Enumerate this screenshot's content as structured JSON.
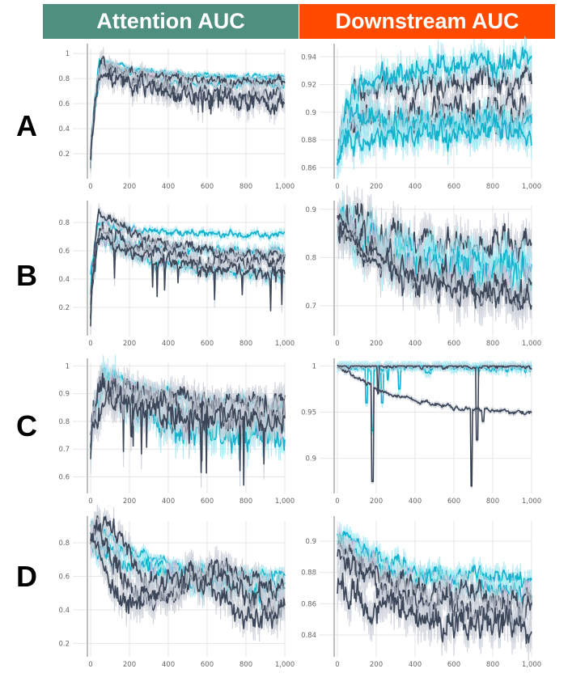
{
  "headers": {
    "attention": {
      "label": "Attention AUC",
      "color": "#4e8f80"
    },
    "downstream": {
      "label": "Downstream AUC",
      "color": "#ff4a00"
    }
  },
  "colors": {
    "dark": "#3b4658",
    "cyan": "#14b1cc",
    "band_dark": "#c6cad4",
    "band_cyan": "#9fe6f2",
    "grid": "#e6e6e6",
    "axis": "#bfbfbf"
  },
  "chart_data": [
    {
      "id": "A-attention",
      "row": "A",
      "metric": "Attention AUC",
      "type": "line",
      "x_ticks": [
        0,
        200,
        400,
        600,
        800,
        1000
      ],
      "x_tick_labels": [
        "0",
        "200",
        "400",
        "600",
        "800",
        "1,000"
      ],
      "y_ticks": [
        0.2,
        0.4,
        0.6,
        0.8,
        1
      ],
      "y_tick_labels": [
        "0.2",
        "0.4",
        "0.6",
        "0.8",
        "1"
      ],
      "ylim": [
        0,
        1.04
      ],
      "xlim": [
        0,
        1000
      ],
      "series": [
        {
          "color": "cyan",
          "start": 0.08,
          "peak_x": 45,
          "peak": 0.94,
          "end": 0.81,
          "noise": 0.015,
          "seed": 1
        },
        {
          "color": "cyan",
          "start": 0.1,
          "peak_x": 55,
          "peak": 0.92,
          "end": 0.8,
          "noise": 0.015,
          "seed": 2
        },
        {
          "color": "cyan",
          "start": 0.12,
          "peak_x": 60,
          "peak": 0.9,
          "end": 0.74,
          "noise": 0.02,
          "seed": 3
        },
        {
          "color": "dark",
          "start": 0.1,
          "peak_x": 50,
          "peak": 0.93,
          "end": 0.76,
          "noise": 0.03,
          "seed": 4
        },
        {
          "color": "dark",
          "start": 0.12,
          "peak_x": 55,
          "peak": 0.9,
          "end": 0.66,
          "noise": 0.05,
          "dip": 0.12,
          "seed": 5
        },
        {
          "color": "dark",
          "start": 0.14,
          "peak_x": 60,
          "peak": 0.88,
          "end": 0.62,
          "noise": 0.06,
          "dip": 0.15,
          "seed": 6
        }
      ]
    },
    {
      "id": "A-downstream",
      "row": "A",
      "metric": "Downstream AUC",
      "type": "line",
      "x_ticks": [
        0,
        200,
        400,
        600,
        800,
        1000
      ],
      "x_tick_labels": [
        "0",
        "200",
        "400",
        "600",
        "800",
        "1,000"
      ],
      "y_ticks": [
        0.86,
        0.88,
        0.9,
        0.92,
        0.94
      ],
      "y_tick_labels": [
        "0.86",
        "0.88",
        "0.9",
        "0.92",
        "0.94"
      ],
      "ylim": [
        0.852,
        0.946
      ],
      "xlim": [
        0,
        1000
      ],
      "series": [
        {
          "color": "dark",
          "start": 0.86,
          "peak_x": 80,
          "peak": 0.915,
          "end": 0.923,
          "noise": 0.007,
          "seed": 11
        },
        {
          "color": "cyan",
          "start": 0.862,
          "peak_x": 100,
          "peak": 0.92,
          "end": 0.936,
          "noise": 0.007,
          "seed": 12
        },
        {
          "color": "dark",
          "start": 0.865,
          "peak_x": 80,
          "peak": 0.895,
          "end": 0.902,
          "noise": 0.007,
          "seed": 13
        },
        {
          "color": "dark",
          "start": 0.865,
          "peak_x": 80,
          "peak": 0.892,
          "end": 0.893,
          "noise": 0.007,
          "seed": 14
        },
        {
          "color": "cyan",
          "start": 0.868,
          "peak_x": 80,
          "peak": 0.895,
          "end": 0.892,
          "noise": 0.007,
          "seed": 15
        },
        {
          "color": "cyan",
          "start": 0.868,
          "peak_x": 80,
          "peak": 0.88,
          "end": 0.884,
          "noise": 0.007,
          "seed": 16
        }
      ]
    },
    {
      "id": "B-attention",
      "row": "B",
      "metric": "Attention AUC",
      "type": "line",
      "x_ticks": [
        0,
        200,
        400,
        600,
        800,
        1000
      ],
      "x_tick_labels": [
        "0",
        "200",
        "400",
        "600",
        "800",
        "1,000"
      ],
      "y_ticks": [
        0.2,
        0.4,
        0.6,
        0.8
      ],
      "y_tick_labels": [
        "0.2",
        "0.4",
        "0.6",
        "0.8"
      ],
      "ylim": [
        0,
        0.92
      ],
      "xlim": [
        0,
        1000
      ],
      "series": [
        {
          "color": "cyan",
          "start": 0.3,
          "peak_x": 40,
          "peak": 0.8,
          "end": 0.71,
          "noise": 0.02,
          "seed": 21
        },
        {
          "color": "cyan",
          "start": 0.25,
          "peak_x": 45,
          "peak": 0.72,
          "end": 0.58,
          "noise": 0.03,
          "seed": 22
        },
        {
          "color": "cyan",
          "start": 0.4,
          "peak_x": 50,
          "peak": 0.68,
          "end": 0.44,
          "noise": 0.03,
          "seed": 23
        },
        {
          "color": "dark",
          "start": 0.1,
          "peak_x": 40,
          "peak": 0.88,
          "end": 0.56,
          "noise": 0.03,
          "seed": 24
        },
        {
          "color": "dark",
          "start": 0.12,
          "peak_x": 50,
          "peak": 0.78,
          "end": 0.5,
          "noise": 0.04,
          "seed": 25
        },
        {
          "color": "dark",
          "start": 0.08,
          "peak_x": 30,
          "peak": 0.7,
          "end": 0.45,
          "noise": 0.04,
          "dip": 0.25,
          "seed": 26
        }
      ]
    },
    {
      "id": "B-downstream",
      "row": "B",
      "metric": "Downstream AUC",
      "type": "line",
      "x_ticks": [
        0,
        200,
        400,
        600,
        800,
        1000
      ],
      "x_tick_labels": [
        "0",
        "200",
        "400",
        "600",
        "800",
        "1,000"
      ],
      "y_ticks": [
        0.7,
        0.8,
        0.9
      ],
      "y_tick_labels": [
        "0.7",
        "0.8",
        "0.9"
      ],
      "ylim": [
        0.638,
        0.908
      ],
      "xlim": [
        0,
        1000
      ],
      "series": [
        {
          "color": "dark",
          "start": 0.89,
          "peak_x": 20,
          "peak": 0.89,
          "end": 0.82,
          "noise": 0.025,
          "seed": 31
        },
        {
          "color": "cyan",
          "start": 0.88,
          "peak_x": 20,
          "peak": 0.88,
          "end": 0.78,
          "noise": 0.025,
          "seed": 32
        },
        {
          "color": "cyan",
          "start": 0.87,
          "peak_x": 20,
          "peak": 0.87,
          "end": 0.76,
          "noise": 0.03,
          "seed": 33
        },
        {
          "color": "dark",
          "start": 0.88,
          "peak_x": 20,
          "peak": 0.88,
          "end": 0.73,
          "noise": 0.03,
          "seed": 34
        },
        {
          "color": "dark",
          "start": 0.87,
          "peak_x": 20,
          "peak": 0.87,
          "end": 0.72,
          "noise": 0.02,
          "seed": 35
        },
        {
          "color": "dark",
          "start": 0.88,
          "peak_x": 20,
          "peak": 0.88,
          "end": 0.66,
          "noise": 0.01,
          "stop_x": 230,
          "seed": 36
        }
      ]
    },
    {
      "id": "C-attention",
      "row": "C",
      "metric": "Attention AUC",
      "type": "line",
      "x_ticks": [
        0,
        200,
        400,
        600,
        800,
        1000
      ],
      "x_tick_labels": [
        "0",
        "200",
        "400",
        "600",
        "800",
        "1,000"
      ],
      "y_ticks": [
        0.6,
        0.7,
        0.8,
        0.9,
        1
      ],
      "y_tick_labels": [
        "0.6",
        "0.7",
        "0.8",
        "0.9",
        "1"
      ],
      "ylim": [
        0.54,
        1.01
      ],
      "xlim": [
        0,
        1000
      ],
      "series": [
        {
          "color": "cyan",
          "start": 0.7,
          "peak_x": 60,
          "peak": 0.985,
          "end": 0.86,
          "noise": 0.015,
          "seed": 41
        },
        {
          "color": "cyan",
          "start": 0.68,
          "peak_x": 70,
          "peak": 0.975,
          "end": 0.8,
          "noise": 0.03,
          "seed": 42
        },
        {
          "color": "cyan",
          "start": 0.66,
          "peak_x": 70,
          "peak": 0.96,
          "end": 0.73,
          "noise": 0.04,
          "seed": 43
        },
        {
          "color": "dark",
          "start": 0.75,
          "peak_x": 60,
          "peak": 0.95,
          "end": 0.87,
          "noise": 0.03,
          "dip": 0.15,
          "seed": 44
        },
        {
          "color": "dark",
          "start": 0.72,
          "peak_x": 60,
          "peak": 0.92,
          "end": 0.82,
          "noise": 0.04,
          "dip": 0.2,
          "seed": 45
        },
        {
          "color": "dark",
          "start": 0.7,
          "peak_x": 80,
          "peak": 0.9,
          "end": 0.8,
          "noise": 0.04,
          "dip": 0.25,
          "seed": 46
        }
      ]
    },
    {
      "id": "C-downstream",
      "row": "C",
      "metric": "Downstream AUC",
      "type": "line",
      "x_ticks": [
        0,
        200,
        400,
        600,
        800,
        1000
      ],
      "x_tick_labels": [
        "0",
        "200",
        "400",
        "600",
        "800",
        "1,000"
      ],
      "y_ticks": [
        0.9,
        0.95,
        1
      ],
      "y_tick_labels": [
        "0.9",
        "0.95",
        "1"
      ],
      "ylim": [
        0.862,
        1.003
      ],
      "xlim": [
        0,
        1000
      ],
      "series": [
        {
          "color": "cyan",
          "start": 1.0,
          "peak_x": 10,
          "peak": 1.0,
          "end": 0.999,
          "noise": 0.004,
          "spikes": [
            [
              180,
              0.93
            ],
            [
              230,
              0.96
            ],
            [
              320,
              0.975
            ]
          ],
          "seed": 51
        },
        {
          "color": "cyan",
          "start": 1.0,
          "peak_x": 10,
          "peak": 1.0,
          "end": 0.999,
          "noise": 0.003,
          "spikes": [
            [
              150,
              0.96
            ],
            [
              260,
              0.985
            ]
          ],
          "seed": 52
        },
        {
          "color": "dark",
          "start": 1.0,
          "peak_x": 10,
          "peak": 1.0,
          "end": 0.95,
          "noise": 0.002,
          "spikes": [
            [
              180,
              0.875
            ],
            [
              690,
              0.87
            ],
            [
              750,
              0.94
            ]
          ],
          "seed": 53
        },
        {
          "color": "dark",
          "start": 1.0,
          "peak_x": 10,
          "peak": 1.0,
          "end": 0.999,
          "noise": 0.002,
          "spikes": [
            [
              210,
              0.97
            ],
            [
              720,
              0.92
            ]
          ],
          "seed": 54
        }
      ]
    },
    {
      "id": "D-attention",
      "row": "D",
      "metric": "Attention AUC",
      "type": "line",
      "x_ticks": [
        0,
        200,
        400,
        600,
        800,
        1000
      ],
      "x_tick_labels": [
        "0",
        "200",
        "400",
        "600",
        "800",
        "1,000"
      ],
      "y_ticks": [
        0.2,
        0.4,
        0.6,
        0.8
      ],
      "y_tick_labels": [
        "0.2",
        "0.4",
        "0.6",
        "0.8"
      ],
      "ylim": [
        0.12,
        0.93
      ],
      "xlim": [
        0,
        1000
      ],
      "series": [
        {
          "color": "cyan",
          "start": 0.9,
          "peak_x": 5,
          "peak": 0.9,
          "end": 0.61,
          "noise": 0.02,
          "seed": 61
        },
        {
          "color": "cyan",
          "start": 0.85,
          "peak_x": 5,
          "peak": 0.85,
          "end": 0.58,
          "noise": 0.03,
          "seed": 62
        },
        {
          "color": "cyan",
          "start": 0.8,
          "peak_x": 5,
          "peak": 0.8,
          "end": 0.52,
          "noise": 0.04,
          "seed": 63
        },
        {
          "color": "dark",
          "start": 0.88,
          "peak_x": 5,
          "peak": 0.88,
          "end": 0.55,
          "noise": 0.05,
          "wave": 0.15,
          "seed": 64
        },
        {
          "color": "dark",
          "start": 0.85,
          "peak_x": 5,
          "peak": 0.85,
          "end": 0.48,
          "noise": 0.06,
          "wave": 0.18,
          "seed": 65
        },
        {
          "color": "dark",
          "start": 0.8,
          "peak_x": 5,
          "peak": 0.8,
          "end": 0.42,
          "noise": 0.06,
          "wave": 0.2,
          "seed": 66
        }
      ]
    },
    {
      "id": "D-downstream",
      "row": "D",
      "metric": "Downstream AUC",
      "type": "line",
      "x_ticks": [
        0,
        200,
        400,
        600,
        800,
        1000
      ],
      "x_tick_labels": [
        "0",
        "200",
        "400",
        "600",
        "800",
        "1,000"
      ],
      "y_ticks": [
        0.84,
        0.86,
        0.88,
        0.9
      ],
      "y_tick_labels": [
        "0.84",
        "0.86",
        "0.88",
        "0.9"
      ],
      "ylim": [
        0.826,
        0.913
      ],
      "xlim": [
        0,
        1000
      ],
      "series": [
        {
          "color": "cyan",
          "start": 0.905,
          "peak_x": 10,
          "peak": 0.905,
          "end": 0.876,
          "noise": 0.004,
          "seed": 71
        },
        {
          "color": "cyan",
          "start": 0.9,
          "peak_x": 10,
          "peak": 0.9,
          "end": 0.868,
          "noise": 0.005,
          "seed": 72
        },
        {
          "color": "dark",
          "start": 0.895,
          "peak_x": 10,
          "peak": 0.895,
          "end": 0.862,
          "noise": 0.006,
          "seed": 73
        },
        {
          "color": "dark",
          "start": 0.89,
          "peak_x": 10,
          "peak": 0.89,
          "end": 0.855,
          "noise": 0.007,
          "seed": 74
        },
        {
          "color": "dark",
          "start": 0.87,
          "peak_x": 10,
          "peak": 0.87,
          "end": 0.845,
          "noise": 0.008,
          "seed": 75
        }
      ]
    }
  ],
  "row_labels": [
    "A",
    "B",
    "C",
    "D"
  ]
}
